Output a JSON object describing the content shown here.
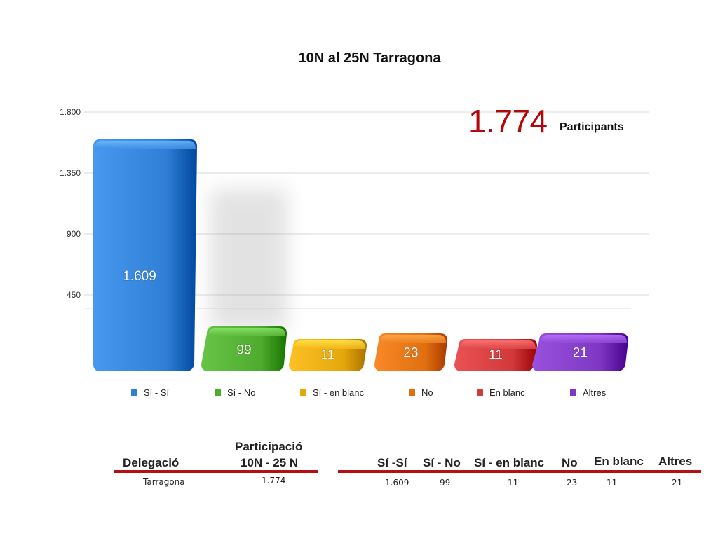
{
  "chart_data": {
    "type": "bar",
    "title": "10N al 25N Tarragona",
    "categories": [
      "Sí - Sí",
      "Sí - No",
      "Sí - en blanc",
      "No",
      "En blanc",
      "Altres"
    ],
    "values": [
      1609,
      99,
      11,
      23,
      11,
      21
    ],
    "value_labels": [
      "1.609",
      "99",
      "11",
      "23",
      "11",
      "21"
    ],
    "colors": [
      "#2f7fd6",
      "#4eab2e",
      "#e4a80c",
      "#e0700f",
      "#d1393a",
      "#7f38c4"
    ],
    "yticks": [
      450,
      900,
      1350,
      1800
    ],
    "ytick_labels": [
      "450",
      "900",
      "1.350",
      "1.800"
    ],
    "ylim": [
      0,
      1800
    ],
    "grid": true,
    "legend_position": "bottom",
    "xlabel": "",
    "ylabel": ""
  },
  "highlight": {
    "number": "1.774",
    "label": "Participants"
  },
  "table": {
    "headers": {
      "delegacio": "Delegació",
      "participacio_line1": "Participació",
      "participacio_line2": "10N - 25 N",
      "si_si": "Sí -Sí",
      "si_no": "Sí - No",
      "si_blanc": "Sí - en blanc",
      "no": "No",
      "en_blanc": "En blanc",
      "altres": "Altres"
    },
    "row": {
      "delegacio": "Tarragona",
      "participacio": "1.774",
      "si_si": "1.609",
      "si_no": "99",
      "si_blanc": "11",
      "no": "23",
      "en_blanc": "11",
      "altres": "21"
    }
  }
}
